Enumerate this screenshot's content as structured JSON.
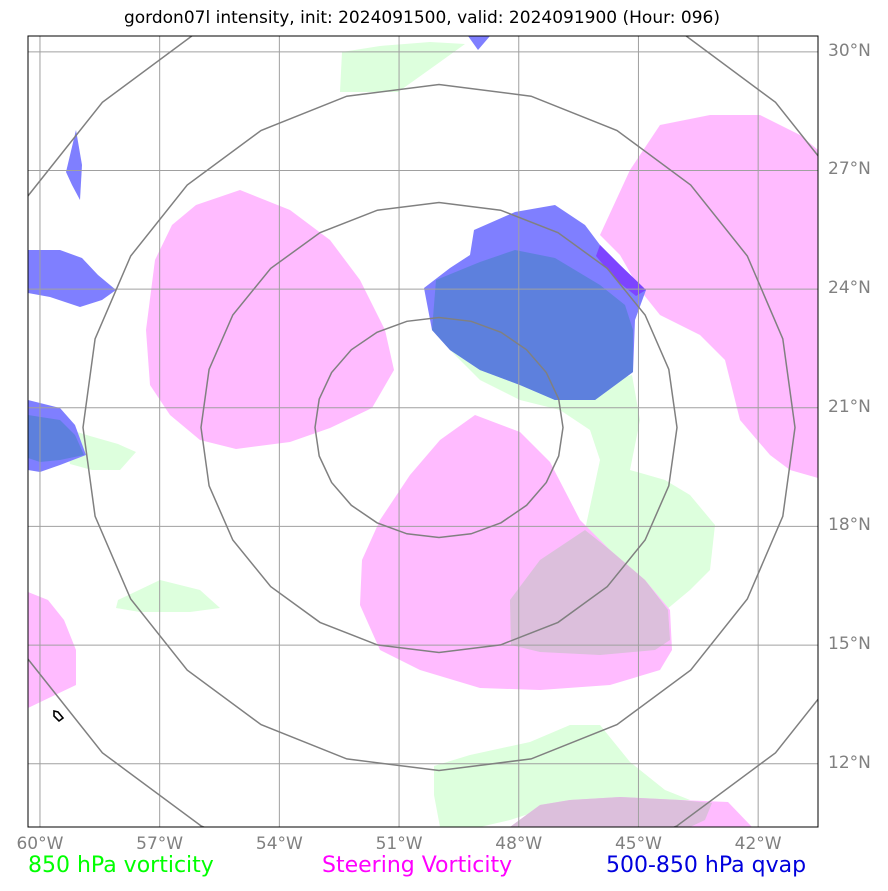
{
  "title": "gordon07l intensity, init: 2024091500, valid: 2024091900 (Hour: 096)",
  "map": {
    "lon_range": [
      -60.3,
      -40.5
    ],
    "lat_range": [
      10.4,
      30.4
    ],
    "lon_ticks": [
      {
        "value": -60,
        "label": "60°W"
      },
      {
        "value": -57,
        "label": "57°W"
      },
      {
        "value": -54,
        "label": "54°W"
      },
      {
        "value": -51,
        "label": "51°W"
      },
      {
        "value": -48,
        "label": "48°W"
      },
      {
        "value": -45,
        "label": "45°W"
      },
      {
        "value": -42,
        "label": "42°W"
      }
    ],
    "lat_ticks": [
      {
        "value": 30,
        "label": "30°N"
      },
      {
        "value": 27,
        "label": "27°N"
      },
      {
        "value": 24,
        "label": "24°N"
      },
      {
        "value": 21,
        "label": "21°N"
      },
      {
        "value": 18,
        "label": "18°N"
      },
      {
        "value": 15,
        "label": "15°N"
      },
      {
        "value": 12,
        "label": "12°N"
      }
    ],
    "range_ring_center": {
      "lon": -50.0,
      "lat": 20.5
    },
    "colors": {
      "gridline": "#a0a0a0",
      "range_ring": "#808080",
      "vort850": "#ddffdd",
      "steering": "#ffbbff",
      "qvap": "#7f7fff",
      "overlap_steer_vort": "#dcbfdc",
      "overlap_qvap_vort": "#5d80dd",
      "overlap_qvap_steer": "#7d44ff",
      "track": "#000000"
    }
  },
  "legend": {
    "vort850": {
      "label": "850 hPa vorticity",
      "color": "#00ff00"
    },
    "steering": {
      "label": "Steering Vorticity",
      "color": "#ff00ff"
    },
    "qvap": {
      "label": "500-850 hPa qvap",
      "color": "#0000dd"
    }
  }
}
